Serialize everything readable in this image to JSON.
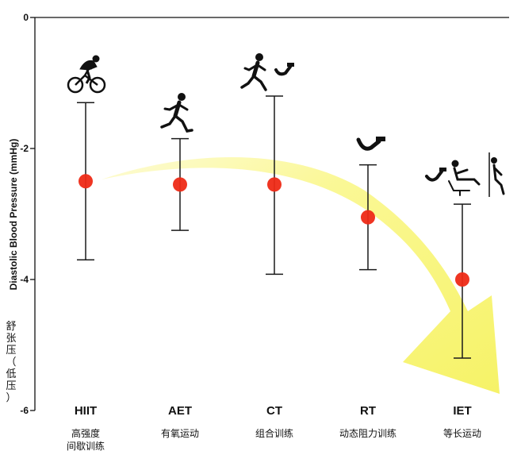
{
  "chart_data": {
    "type": "scatter",
    "title": "",
    "ylabel": "Diastolic Blood Pressure (mmHg)",
    "ylabel_cn": [
      "舒",
      "张",
      "压",
      "（",
      "低",
      "压",
      "）"
    ],
    "ylim": [
      -6,
      0
    ],
    "yticks": [
      0,
      -2,
      -4,
      -6
    ],
    "ytick_labels": [
      "0",
      "-2",
      "-4",
      "-6"
    ],
    "grid": false,
    "legend": "none",
    "categories": [
      {
        "code": "HIIT",
        "cn": [
          "高强度",
          "间歇训练"
        ],
        "icon": "cyclist-icon"
      },
      {
        "code": "AET",
        "cn": [
          "有氧运动"
        ],
        "icon": "runner-icon"
      },
      {
        "code": "CT",
        "cn": [
          "组合训练"
        ],
        "icon": "runner-and-dumbbell-icon"
      },
      {
        "code": "RT",
        "cn": [
          "动态阻力训练"
        ],
        "icon": "dumbbell-arm-icon"
      },
      {
        "code": "IET",
        "cn": [
          "等长运动"
        ],
        "icon": "isometric-exercise-icon"
      }
    ],
    "series": [
      {
        "values": [
          -2.5,
          -2.55,
          -2.55,
          -3.05,
          -4.0
        ],
        "upper": [
          -1.3,
          -1.85,
          -1.2,
          -2.25,
          -2.85
        ],
        "lower": [
          -3.7,
          -3.25,
          -3.92,
          -3.85,
          -5.2
        ]
      }
    ],
    "colors": {
      "point": "#ee2a16",
      "arrow": "#f7f46a",
      "errorbar": "#1a1a1a",
      "axis": "#111111"
    }
  }
}
